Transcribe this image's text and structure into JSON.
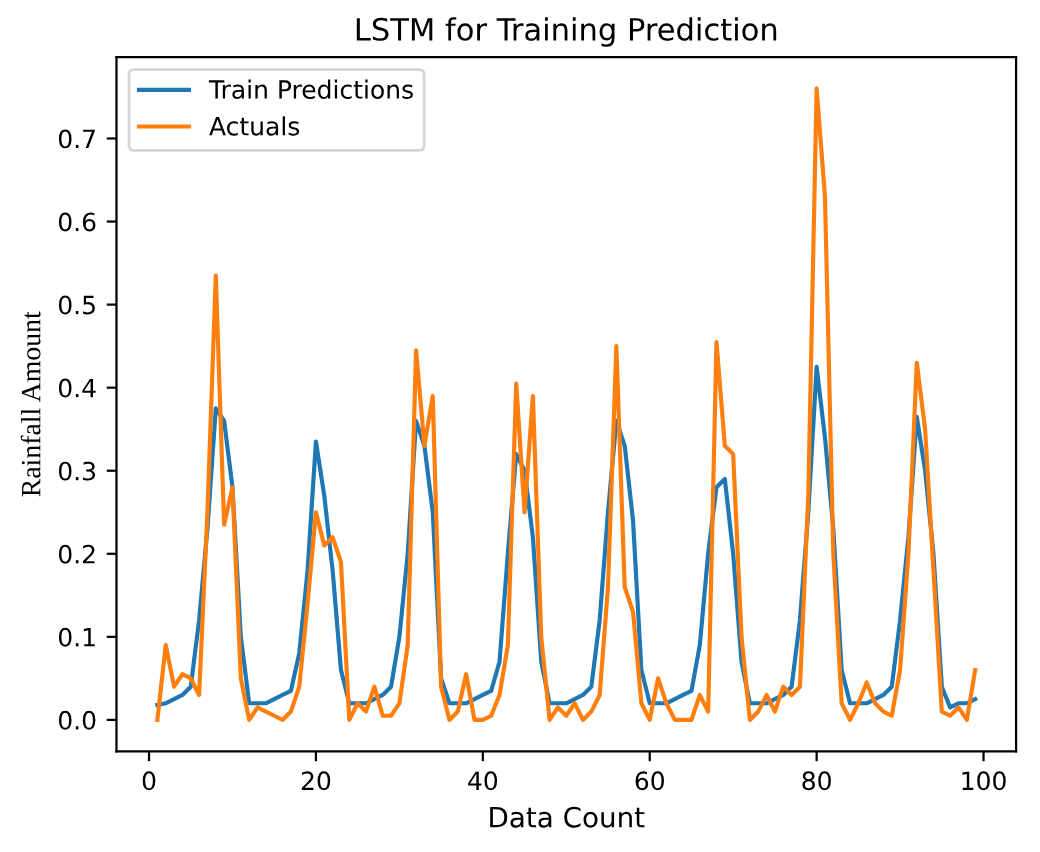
{
  "chart_data": {
    "type": "line",
    "title": "LSTM for Training Prediction",
    "xlabel": "Data Count",
    "ylabel": "Rainfall Amount",
    "x": [
      1,
      2,
      3,
      4,
      5,
      6,
      7,
      8,
      9,
      10,
      11,
      12,
      13,
      14,
      15,
      16,
      17,
      18,
      19,
      20,
      21,
      22,
      23,
      24,
      25,
      26,
      27,
      28,
      29,
      30,
      31,
      32,
      33,
      34,
      35,
      36,
      37,
      38,
      39,
      40,
      41,
      42,
      43,
      44,
      45,
      46,
      47,
      48,
      49,
      50,
      51,
      52,
      53,
      54,
      55,
      56,
      57,
      58,
      59,
      60,
      61,
      62,
      63,
      64,
      65,
      66,
      67,
      68,
      69,
      70,
      71,
      72,
      73,
      74,
      75,
      76,
      77,
      78,
      79,
      80,
      81,
      82,
      83,
      84,
      85,
      86,
      87,
      88,
      89,
      90,
      91,
      92,
      93,
      94,
      95,
      96,
      97,
      98,
      99
    ],
    "series": [
      {
        "name": "Train Predictions",
        "color": "#1f77b4",
        "values": [
          0.018,
          0.02,
          0.025,
          0.03,
          0.04,
          0.12,
          0.23,
          0.375,
          0.36,
          0.28,
          0.1,
          0.02,
          0.02,
          0.02,
          0.025,
          0.03,
          0.035,
          0.08,
          0.18,
          0.335,
          0.27,
          0.18,
          0.06,
          0.02,
          0.02,
          0.02,
          0.025,
          0.03,
          0.04,
          0.1,
          0.2,
          0.36,
          0.33,
          0.25,
          0.05,
          0.02,
          0.02,
          0.02,
          0.025,
          0.03,
          0.035,
          0.07,
          0.2,
          0.32,
          0.3,
          0.22,
          0.07,
          0.02,
          0.02,
          0.02,
          0.025,
          0.03,
          0.04,
          0.12,
          0.25,
          0.36,
          0.33,
          0.24,
          0.06,
          0.02,
          0.02,
          0.02,
          0.025,
          0.03,
          0.035,
          0.09,
          0.2,
          0.28,
          0.29,
          0.2,
          0.07,
          0.02,
          0.02,
          0.02,
          0.025,
          0.03,
          0.04,
          0.12,
          0.25,
          0.425,
          0.34,
          0.23,
          0.06,
          0.02,
          0.02,
          0.02,
          0.025,
          0.03,
          0.04,
          0.12,
          0.22,
          0.365,
          0.3,
          0.2,
          0.04,
          0.015,
          0.02,
          0.02,
          0.025
        ]
      },
      {
        "name": "Actuals",
        "color": "#ff7f0e",
        "values": [
          0.0,
          0.09,
          0.04,
          0.055,
          0.05,
          0.03,
          0.25,
          0.535,
          0.235,
          0.28,
          0.05,
          0.0,
          0.015,
          0.01,
          0.005,
          0.0,
          0.01,
          0.04,
          0.14,
          0.25,
          0.21,
          0.22,
          0.19,
          0.0,
          0.02,
          0.01,
          0.04,
          0.005,
          0.005,
          0.02,
          0.09,
          0.445,
          0.33,
          0.39,
          0.04,
          0.0,
          0.01,
          0.055,
          0.0,
          0.0,
          0.005,
          0.03,
          0.09,
          0.405,
          0.25,
          0.39,
          0.1,
          0.0,
          0.015,
          0.005,
          0.02,
          0.0,
          0.01,
          0.03,
          0.16,
          0.45,
          0.16,
          0.13,
          0.02,
          0.0,
          0.05,
          0.02,
          0.0,
          0.0,
          0.0,
          0.03,
          0.01,
          0.455,
          0.33,
          0.32,
          0.1,
          0.0,
          0.01,
          0.03,
          0.01,
          0.04,
          0.03,
          0.04,
          0.27,
          0.76,
          0.63,
          0.2,
          0.02,
          0.0,
          0.02,
          0.045,
          0.02,
          0.01,
          0.005,
          0.06,
          0.2,
          0.43,
          0.35,
          0.18,
          0.01,
          0.005,
          0.015,
          0.0,
          0.06
        ]
      }
    ],
    "xlim": [
      -3.9,
      103.9
    ],
    "ylim": [
      -0.038,
      0.798
    ],
    "xticks": [
      0,
      20,
      40,
      60,
      80,
      100
    ],
    "yticks": [
      {
        "value": 0,
        "label": "0.0"
      },
      {
        "value": 0.1,
        "label": "0.1"
      },
      {
        "value": 0.2,
        "label": "0.2"
      },
      {
        "value": 0.3,
        "label": "0.3"
      },
      {
        "value": 0.4,
        "label": "0.4"
      },
      {
        "value": 0.5,
        "label": "0.5"
      },
      {
        "value": 0.6,
        "label": "0.6"
      },
      {
        "value": 0.7,
        "label": "0.7"
      }
    ],
    "grid": false,
    "legend": "top left"
  }
}
